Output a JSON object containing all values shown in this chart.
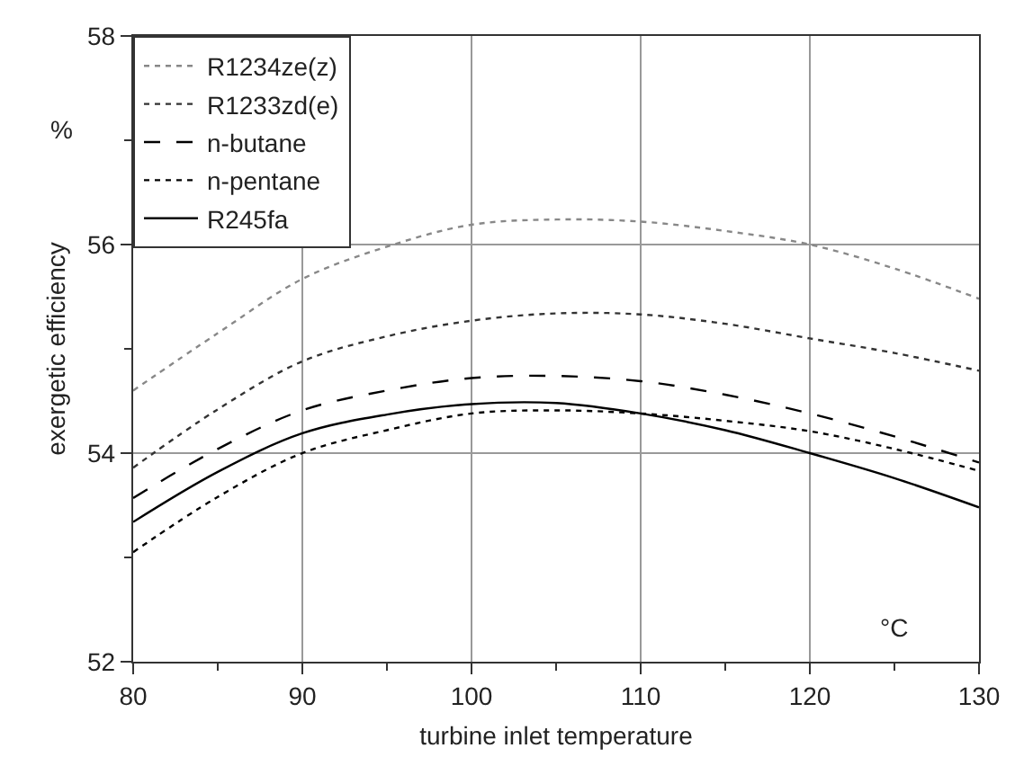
{
  "chart_data": {
    "type": "line",
    "xlabel": "turbine inlet temperature",
    "ylabel": "exergetic efficiency",
    "x": [
      80,
      85,
      90,
      95,
      100,
      105,
      110,
      115,
      120,
      125,
      130
    ],
    "series": [
      {
        "name": "R1234ze(z)",
        "color": "#888888",
        "line_style": "dotted",
        "values": [
          54.6,
          55.15,
          55.67,
          55.98,
          56.19,
          56.24,
          56.22,
          56.13,
          56.0,
          55.77,
          55.48
        ]
      },
      {
        "name": "R1233zd(e)",
        "color": "#333333",
        "line_style": "dotted",
        "values": [
          53.86,
          54.42,
          54.88,
          55.12,
          55.27,
          55.34,
          55.33,
          55.24,
          55.1,
          54.96,
          54.79
        ]
      },
      {
        "name": "n-butane",
        "color": "#000000",
        "line_style": "dashed",
        "values": [
          53.57,
          54.04,
          54.41,
          54.6,
          54.72,
          54.74,
          54.69,
          54.56,
          54.38,
          54.16,
          53.91
        ]
      },
      {
        "name": "n-pentane",
        "color": "#000000",
        "line_style": "dotted",
        "values": [
          53.05,
          53.58,
          54.0,
          54.22,
          54.38,
          54.41,
          54.38,
          54.31,
          54.21,
          54.04,
          53.83
        ]
      },
      {
        "name": "R245fa",
        "color": "#000000",
        "line_style": "solid",
        "values": [
          53.34,
          53.82,
          54.19,
          54.37,
          54.47,
          54.48,
          54.38,
          54.22,
          54.0,
          53.76,
          53.48
        ]
      }
    ],
    "xlim": [
      80,
      130
    ],
    "xticks": [
      80,
      {
        "value": 85,
        "label": null
      },
      90,
      {
        "value": 95,
        "label": null
      },
      100,
      {
        "value": 105,
        "label": null
      },
      110,
      {
        "value": 115,
        "label": null
      },
      120,
      {
        "value": 125,
        "label": null
      },
      130
    ],
    "ylim": [
      52,
      58
    ],
    "yticks": [
      52,
      {
        "value": 53,
        "label": null
      },
      54,
      {
        "value": 55,
        "label": null
      },
      56,
      {
        "value": 57,
        "label": null
      },
      58
    ],
    "grid": true,
    "legend": "top left",
    "marker": "none",
    "annotations": [
      "%",
      "°C"
    ]
  }
}
